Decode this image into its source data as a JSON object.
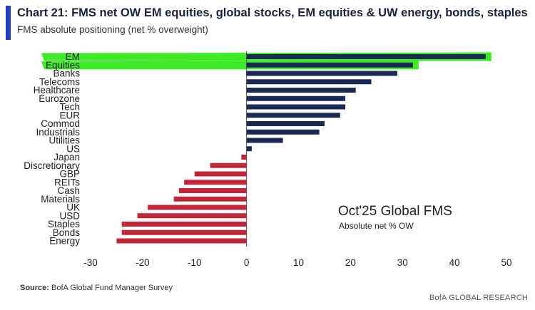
{
  "header": {
    "title": "Chart 21: FMS net OW EM equities, global stocks, EM equities & UW energy, bonds, staples",
    "subtitle": "FMS absolute positioning (net % overweight)"
  },
  "footer": {
    "source_label": "Source:",
    "source_text": "BofA Global Fund Manager Survey",
    "brand": "BofA GLOBAL RESEARCH"
  },
  "colors": {
    "positive": "#1b2a52",
    "negative": "#c0283a",
    "highlight": "#2de812",
    "accent": "#1f3fbf"
  },
  "chart_data": {
    "type": "bar",
    "orientation": "horizontal",
    "annotation_title": "Oct'25 Global FMS",
    "annotation_sub": "Absolute net % OW",
    "categories": [
      "EM",
      "Equities",
      "Banks",
      "Telecoms",
      "Healthcare",
      "Eurozone",
      "Tech",
      "EUR",
      "Commod",
      "Industrials",
      "Utilities",
      "US",
      "Japan",
      "Discretionary",
      "GBP",
      "REITs",
      "Cash",
      "Materials",
      "UK",
      "USD",
      "Staples",
      "Bonds",
      "Energy"
    ],
    "values": [
      46,
      32,
      29,
      24,
      21,
      19,
      19,
      18,
      15,
      14,
      7,
      1,
      -1,
      -7,
      -10,
      -12,
      -13,
      -14,
      -19,
      -21,
      -24,
      -24,
      -25
    ],
    "highlighted": [
      "EM",
      "Equities"
    ],
    "xlim": [
      -30,
      50
    ],
    "xticks": [
      -30,
      -20,
      -10,
      0,
      10,
      20,
      30,
      40,
      50
    ],
    "grid": false,
    "xlabel": "",
    "ylabel": ""
  }
}
